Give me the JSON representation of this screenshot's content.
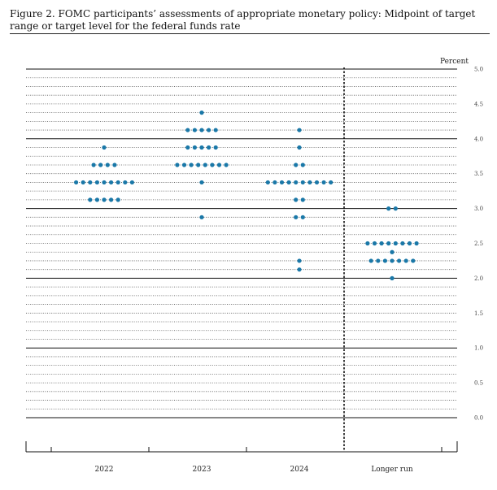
{
  "figure": {
    "title": "Figure 2.  FOMC participants’ assessments of appropriate monetary policy: Midpoint of target range or target level for the federal funds rate"
  },
  "chart_data": {
    "type": "scatter",
    "title": "Figure 2.  FOMC participants’ assessments of appropriate monetary policy: Midpoint of target range or target level for the federal funds rate",
    "ylabel": "Percent",
    "xlabel": "",
    "ylim": [
      0,
      5
    ],
    "y_ticks": [
      "0.0",
      "0.5",
      "1.0",
      "1.5",
      "2.0",
      "2.5",
      "3.0",
      "3.5",
      "4.0",
      "4.5",
      "5.0"
    ],
    "minor_gridline_step": 0.125,
    "grid": true,
    "categories": [
      "2022",
      "2023",
      "2024",
      "Longer run"
    ],
    "separator_after_category": "2024",
    "dot_color": "#1a78a8",
    "series": [
      {
        "values": [
          {
            "y": 3.875,
            "count": 1
          },
          {
            "y": 3.625,
            "count": 4
          },
          {
            "y": 3.375,
            "count": 9
          },
          {
            "y": 3.125,
            "count": 5
          }
        ]
      },
      {
        "values": [
          {
            "y": 4.375,
            "count": 1
          },
          {
            "y": 4.125,
            "count": 5
          },
          {
            "y": 3.875,
            "count": 5
          },
          {
            "y": 3.625,
            "count": 8
          },
          {
            "y": 3.375,
            "count": 1
          },
          {
            "y": 2.875,
            "count": 1
          }
        ]
      },
      {
        "values": [
          {
            "y": 4.125,
            "count": 1
          },
          {
            "y": 3.875,
            "count": 1
          },
          {
            "y": 3.625,
            "count": 2
          },
          {
            "y": 3.375,
            "count": 10
          },
          {
            "y": 3.125,
            "count": 2
          },
          {
            "y": 2.875,
            "count": 2
          },
          {
            "y": 2.25,
            "count": 1
          },
          {
            "y": 2.125,
            "count": 1
          }
        ]
      },
      {
        "values": [
          {
            "y": 3.0,
            "count": 2
          },
          {
            "y": 2.5,
            "count": 8
          },
          {
            "y": 2.375,
            "count": 1
          },
          {
            "y": 2.25,
            "count": 7
          },
          {
            "y": 2.0,
            "count": 1
          }
        ]
      }
    ]
  }
}
